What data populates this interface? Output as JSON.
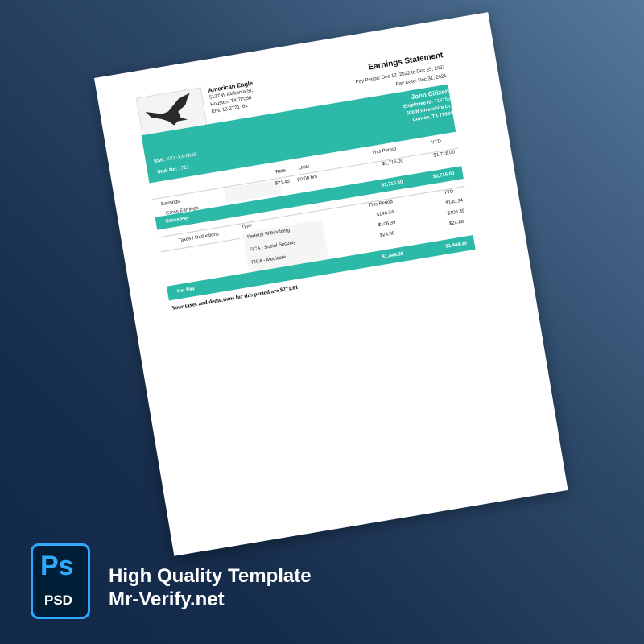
{
  "statement": {
    "title": "Earnings Statement",
    "pay_period": "Pay Period: Dec 12, 2022 to Dec 25, 2022",
    "pay_date": "Pay Date: Dec 31, 2021",
    "company": {
      "name": "American Eagle",
      "address1": "5137 W Alabama St,",
      "address2": "Houston, TX 77056",
      "ein": "EIN: 13-2721761"
    },
    "employee": {
      "name": "John Citizen",
      "id_label": "Employee Id:",
      "id": "719156",
      "address1": "600 N Rivershire Dr,",
      "address2": "Conroe, TX 77304"
    },
    "ssn_label": "SSN:",
    "ssn": "XXX-XX-6849",
    "stub_label": "Stub No:",
    "stub": "1721",
    "earnings": {
      "section": "Earnings",
      "headers": {
        "rate": "Rate",
        "units": "Units",
        "this_period": "This Period",
        "ytd": "YTD"
      },
      "row": {
        "label": "Gross Earnings",
        "rate": "$21.45",
        "units": "80.00 hrs",
        "this_period": "$1,716.00",
        "ytd": "$1,716.00"
      },
      "total": {
        "label": "Gross  Pay",
        "this_period": "$1,716.00",
        "ytd": "$1,716.00"
      }
    },
    "deductions": {
      "section": "Taxes / Deductions",
      "headers": {
        "type": "Type",
        "this_period": "This Period",
        "ytd": "YTD"
      },
      "rows": [
        {
          "type": "Federal Withholding",
          "this_period": "$140.34",
          "ytd": "$140.34"
        },
        {
          "type": "FICA - Social Security",
          "this_period": "$106.39",
          "ytd": "$106.39"
        },
        {
          "type": "FICA - Medicare",
          "this_period": "$24.88",
          "ytd": "$24.88"
        }
      ],
      "total": {
        "label": "Net Pay",
        "this_period": "$1,444.39",
        "ytd": "$1,444.39"
      }
    },
    "note": "Your taxes and deductions for this period are $271.61"
  },
  "badge": {
    "top": "Ps",
    "bottom": "PSD"
  },
  "promo": {
    "line1": "High Quality Template",
    "line2": "Mr-Verify.net"
  },
  "colors": {
    "accent": "#2db9a7",
    "ps_blue": "#31a8ff",
    "ps_bg": "#001e36"
  }
}
